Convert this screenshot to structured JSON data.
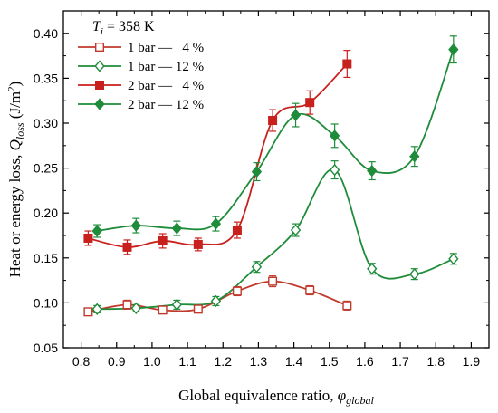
{
  "chart_data": {
    "type": "scatter",
    "annotation": {
      "prefix": "T",
      "sub": "i",
      "suffix": " = 358 K"
    },
    "xlabel": {
      "text": "Global equivalence ratio, ",
      "symbol": "φ",
      "sub": "global"
    },
    "ylabel": {
      "text": "Heat or energy loss, ",
      "symbol": "Q",
      "sub": "loss",
      "unit": " (J/m",
      "sup": "2",
      "close": ")"
    },
    "xlim": [
      0.75,
      1.95
    ],
    "ylim": [
      0.05,
      0.425
    ],
    "x_ticks": [
      "0.8",
      "0.9",
      "1.0",
      "1.1",
      "1.2",
      "1.3",
      "1.4",
      "1.5",
      "1.6",
      "1.7",
      "1.8",
      "1.9"
    ],
    "y_ticks": [
      "0.05",
      "0.10",
      "0.15",
      "0.20",
      "0.25",
      "0.30",
      "0.35",
      "0.40"
    ],
    "grid": false,
    "legend_position": "top-left",
    "series": [
      {
        "name": "1 bar —   4 %",
        "color": "#c0392b",
        "marker": "square-open",
        "x": [
          0.82,
          0.93,
          1.03,
          1.13,
          1.24,
          1.34,
          1.445,
          1.55
        ],
        "y": [
          0.09,
          0.098,
          0.092,
          0.093,
          0.113,
          0.124,
          0.114,
          0.097
        ],
        "err": [
          0.004,
          0.005,
          0.004,
          0.004,
          0.005,
          0.006,
          0.005,
          0.005
        ]
      },
      {
        "name": "1 bar — 12 %",
        "color": "#1e8c3a",
        "marker": "diamond-open",
        "x": [
          0.845,
          0.955,
          1.07,
          1.18,
          1.295,
          1.405,
          1.515,
          1.62,
          1.74,
          1.85
        ],
        "y": [
          0.093,
          0.094,
          0.098,
          0.102,
          0.14,
          0.181,
          0.248,
          0.138,
          0.132,
          0.149
        ],
        "err": [
          0.004,
          0.004,
          0.005,
          0.005,
          0.006,
          0.007,
          0.01,
          0.006,
          0.006,
          0.006
        ]
      },
      {
        "name": "2 bar —   4 %",
        "color": "#c8201c",
        "marker": "square-filled",
        "x": [
          0.82,
          0.93,
          1.03,
          1.13,
          1.24,
          1.34,
          1.445,
          1.55
        ],
        "y": [
          0.172,
          0.162,
          0.169,
          0.165,
          0.181,
          0.303,
          0.323,
          0.366
        ],
        "err": [
          0.008,
          0.008,
          0.008,
          0.007,
          0.009,
          0.012,
          0.013,
          0.015
        ]
      },
      {
        "name": "2 bar — 12 %",
        "color": "#1e8c3a",
        "marker": "diamond-filled",
        "x": [
          0.845,
          0.955,
          1.07,
          1.18,
          1.295,
          1.405,
          1.515,
          1.62,
          1.74,
          1.85
        ],
        "y": [
          0.18,
          0.186,
          0.183,
          0.188,
          0.246,
          0.309,
          0.286,
          0.247,
          0.263,
          0.382
        ],
        "err": [
          0.007,
          0.008,
          0.008,
          0.008,
          0.01,
          0.013,
          0.013,
          0.01,
          0.011,
          0.015
        ]
      }
    ]
  }
}
